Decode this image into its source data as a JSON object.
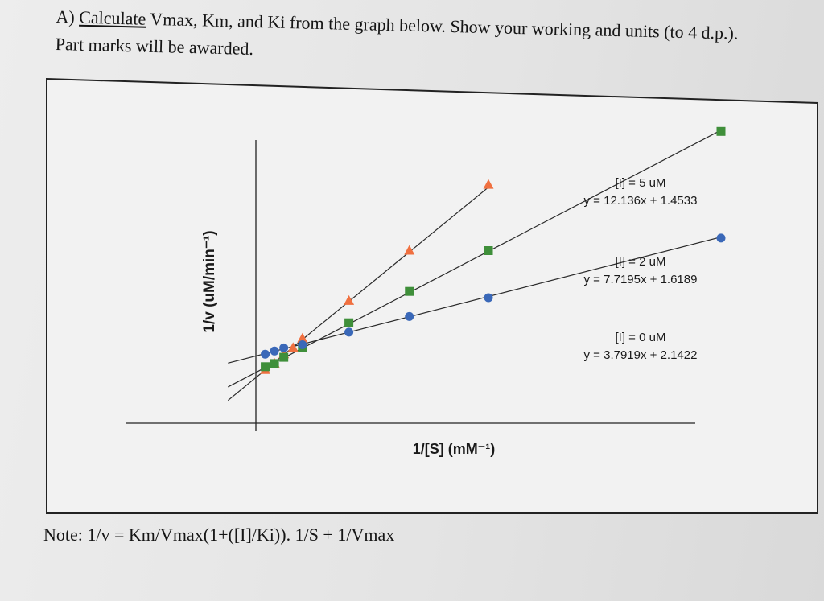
{
  "question": {
    "prefix": "A) ",
    "underlined": "Calculate",
    "rest": " Vmax, Km, and Ki from the graph below. Show your working and units (to 4 d.p.).",
    "line2": "Part marks will be awarded."
  },
  "note": "Note: 1/v = Km/Vmax(1+([I]/Ki)). 1/S + 1/Vmax",
  "colors": {
    "i5": "#f07040",
    "i2": "#3f8f3a",
    "i0": "#3a68b8",
    "line": "#2a2a2a"
  },
  "chart_data": {
    "type": "scatter",
    "xlabel": "1/[S] (mM⁻¹)",
    "ylabel": "1/v (uM/min⁻¹)",
    "xlim": [
      -0.1,
      1.5
    ],
    "ylim": [
      -0.1,
      8.9
    ],
    "series": [
      {
        "name": "[I] = 5 uM",
        "equation": "y = 12.136x + 1.4533",
        "slope": 12.136,
        "intercept": 1.4533,
        "marker": "triangle",
        "color": "#f07040",
        "x": [
          0.02,
          0.04,
          0.06,
          0.08,
          0.1,
          0.2,
          0.33,
          0.5
        ],
        "y": [
          1.7,
          1.9,
          2.2,
          2.4,
          2.7,
          3.9,
          5.5,
          7.6
        ]
      },
      {
        "name": "[I] = 2 uM",
        "equation": "y = 7.7195x + 1.6189",
        "slope": 7.7195,
        "intercept": 1.6189,
        "marker": "square",
        "color": "#3f8f3a",
        "x": [
          0.02,
          0.04,
          0.06,
          0.1,
          0.2,
          0.33,
          0.5,
          1.0
        ],
        "y": [
          1.8,
          1.9,
          2.1,
          2.4,
          3.2,
          4.2,
          5.5,
          9.3
        ]
      },
      {
        "name": "[I] = 0 uM",
        "equation": "y = 3.7919x + 2.1422",
        "slope": 3.7919,
        "intercept": 2.1422,
        "marker": "circle",
        "color": "#3a68b8",
        "x": [
          0.02,
          0.04,
          0.06,
          0.1,
          0.2,
          0.33,
          0.5,
          1.0
        ],
        "y": [
          2.2,
          2.3,
          2.4,
          2.5,
          2.9,
          3.4,
          4.0,
          5.9
        ]
      }
    ]
  }
}
